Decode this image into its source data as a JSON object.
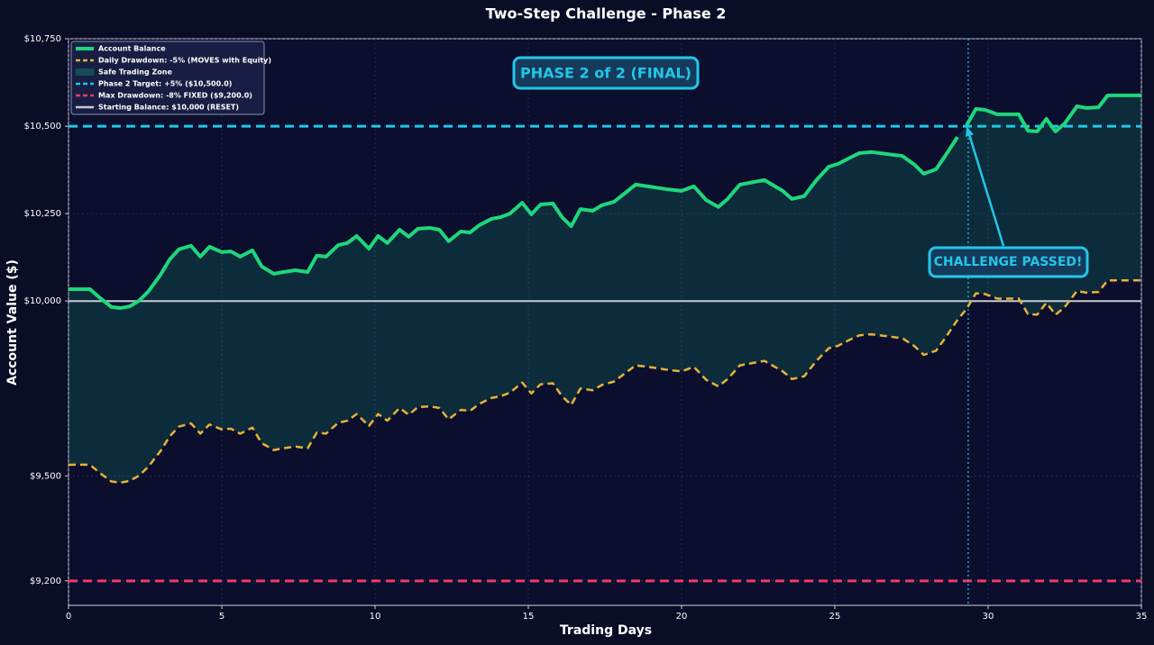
{
  "chart_data": {
    "type": "line",
    "title": "Two-Step Challenge - Phase 2",
    "xlabel": "Trading Days",
    "ylabel": "Account Value ($)",
    "xlim": [
      0,
      35
    ],
    "xticks": [
      0,
      5,
      10,
      15,
      20,
      25,
      30,
      35
    ],
    "ylim": [
      9130,
      10750
    ],
    "yticks": [
      {
        "value": 9200,
        "label": "$9,200"
      },
      {
        "value": 9500,
        "label": "$9,500"
      },
      {
        "value": 10000,
        "label": "$10,000"
      },
      {
        "value": 10250,
        "label": "$10,250"
      },
      {
        "value": 10500,
        "label": "$10,500"
      },
      {
        "value": 10750,
        "label": "$10,750"
      }
    ],
    "grid": true,
    "legend": "upper left",
    "x": [
      0,
      0.7,
      1.0,
      1.4,
      1.7,
      2.0,
      2.3,
      2.6,
      3.0,
      3.3,
      3.6,
      4.0,
      4.3,
      4.6,
      5.0,
      5.3,
      5.6,
      6.0,
      6.3,
      6.7,
      7.0,
      7.4,
      7.8,
      8.1,
      8.4,
      8.8,
      9.1,
      9.4,
      9.8,
      10.1,
      10.4,
      10.8,
      11.1,
      11.4,
      11.8,
      12.1,
      12.4,
      12.8,
      13.1,
      13.4,
      13.8,
      14.1,
      14.4,
      14.8,
      15.1,
      15.4,
      15.8,
      16.1,
      16.4,
      16.7,
      17.1,
      17.4,
      17.8,
      18.5,
      18.9,
      19.5,
      20.0,
      20.4,
      20.8,
      21.2,
      21.5,
      21.9,
      22.7,
      23.3,
      23.6,
      24.0,
      24.4,
      24.8,
      25.1,
      25.5,
      25.8,
      26.2,
      26.9,
      27.2,
      27.6,
      27.9,
      28.3,
      28.6,
      29.0,
      29.15,
      29.3,
      29.6,
      29.9,
      30.3,
      30.6,
      31.0,
      31.3,
      31.6,
      31.9,
      32.2,
      32.5,
      32.9,
      33.2,
      33.6,
      33.9,
      35
    ],
    "series": [
      {
        "name": "Account Balance",
        "color": "#1fd67c",
        "dashed": false,
        "width": 4,
        "values": [
          10034,
          10034,
          10011,
          9983,
          9980,
          9985,
          10001,
          10027,
          10075,
          10119,
          10148,
          10158,
          10127,
          10155,
          10140,
          10142,
          10127,
          10145,
          10099,
          10078,
          10083,
          10088,
          10083,
          10130,
          10127,
          10160,
          10166,
          10186,
          10150,
          10186,
          10166,
          10204,
          10184,
          10207,
          10209,
          10204,
          10171,
          10199,
          10196,
          10217,
          10235,
          10240,
          10250,
          10281,
          10248,
          10276,
          10279,
          10240,
          10214,
          10263,
          10258,
          10274,
          10284,
          10333,
          10328,
          10320,
          10315,
          10328,
          10289,
          10269,
          10292,
          10333,
          10346,
          10315,
          10292,
          10300,
          10346,
          10384,
          10392,
          10410,
          10423,
          10426,
          10418,
          10415,
          10390,
          10364,
          10377,
          10415,
          10469,
          null,
          10503,
          10549,
          10547,
          10534,
          10534,
          10534,
          10487,
          10485,
          10521,
          10485,
          10508,
          10557,
          10552,
          10554,
          10588,
          10588
        ]
      },
      {
        "name": "Daily Drawdown: -5% (MOVES with Equity)",
        "color": "#e6b23a",
        "dashed": true,
        "width": 2.5,
        "values": [
          9532,
          9532,
          9510,
          9484,
          9481,
          9486,
          9501,
          9526,
          9571,
          9613,
          9641,
          9650,
          9621,
          9647,
          9633,
          9635,
          9621,
          9638,
          9594,
          9574,
          9579,
          9584,
          9579,
          9624,
          9621,
          9652,
          9658,
          9677,
          9643,
          9677,
          9658,
          9694,
          9675,
          9697,
          9699,
          9694,
          9662,
          9689,
          9686,
          9706,
          9723,
          9728,
          9738,
          9767,
          9736,
          9762,
          9765,
          9728,
          9703,
          9750,
          9745,
          9760,
          9770,
          9816,
          9812,
          9804,
          9799,
          9812,
          9775,
          9756,
          9777,
          9816,
          9829,
          9799,
          9777,
          9785,
          9829,
          9865,
          9872,
          9890,
          9902,
          9905,
          9897,
          9894,
          9871,
          9846,
          9858,
          9894,
          9946,
          9962,
          9978,
          10022,
          10020,
          10007,
          10007,
          10007,
          9963,
          9961,
          9995,
          9961,
          9983,
          10029,
          10024,
          10026,
          10059,
          10059
        ]
      }
    ],
    "fill": {
      "name": "Safe Trading Zone",
      "color": "#10b981"
    },
    "reference_lines": [
      {
        "name": "Phase 2 Target: +5% ($10,500.0)",
        "value": 10500,
        "color": "#22c7e8",
        "dashed": true
      },
      {
        "name": "Max Drawdown: -8% FIXED ($9,200.0)",
        "value": 9200,
        "color": "#f03a6a",
        "dashed": true
      },
      {
        "name": "Starting Balance: $10,000 (RESET)",
        "value": 10000,
        "color": "#c9c9d4",
        "dashed": false
      }
    ],
    "event_x": 29.35,
    "annotations": [
      {
        "text": "PHASE 2 of 2 (FINAL)"
      },
      {
        "text": "CHALLENGE PASSED!",
        "xy": [
          29.3,
          10500
        ]
      }
    ]
  }
}
